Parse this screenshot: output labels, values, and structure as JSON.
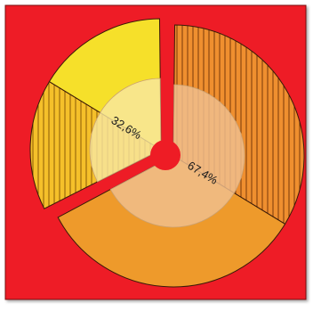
{
  "chart_data": {
    "type": "pie",
    "subtype": "exploded-sunburst",
    "background_color": "#ee1c25",
    "slices": [
      {
        "label": "67,4%",
        "value": 67.4,
        "inner_color": "#f0c090",
        "segments": [
          {
            "value": 33.7,
            "color": "#ef8f2f",
            "pattern": "vertical-stripes"
          },
          {
            "value": 33.7,
            "color": "#ee9a2b",
            "pattern": "solid"
          }
        ]
      },
      {
        "label": "32,6%",
        "value": 32.6,
        "inner_color": "#f8e6a0",
        "segments": [
          {
            "value": 16.3,
            "color": "#f5c02a",
            "pattern": "vertical-stripes"
          },
          {
            "value": 16.3,
            "color": "#f6e02a",
            "pattern": "solid"
          }
        ]
      }
    ],
    "center_color": "#ee1c25",
    "legend": "none",
    "title": ""
  }
}
